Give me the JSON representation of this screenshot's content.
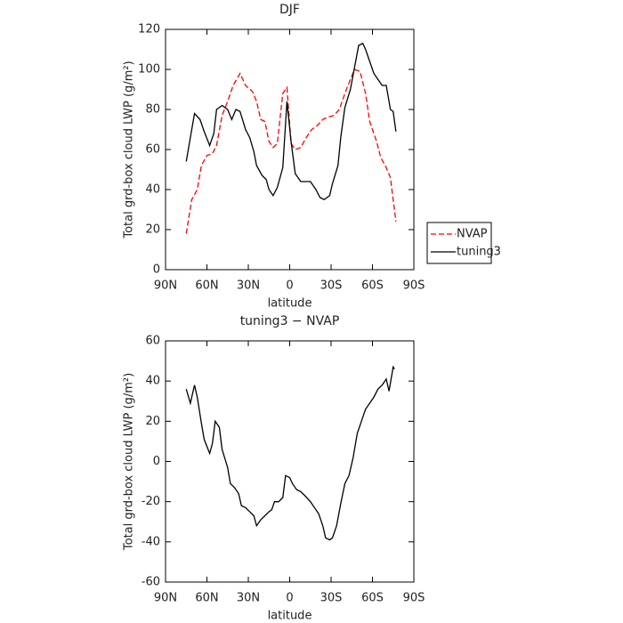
{
  "chart_data": [
    {
      "type": "line",
      "title": "DJF",
      "xlabel": "latitude",
      "ylabel": "Total grd-box cloud LWP (g/m²)",
      "xlim": [
        90,
        -90
      ],
      "xticks": [
        {
          "value": 90,
          "label": "90N"
        },
        {
          "value": 60,
          "label": "60N"
        },
        {
          "value": 30,
          "label": "30N"
        },
        0,
        {
          "value": -30,
          "label": "30S"
        },
        {
          "value": -60,
          "label": "60S"
        },
        {
          "value": -90,
          "label": "90S"
        }
      ],
      "ylim": [
        0,
        120
      ],
      "yticks": [
        0,
        20,
        40,
        60,
        80,
        100,
        120
      ],
      "legend": "right",
      "series": [
        {
          "name": "NVAP",
          "color": "#ff0000",
          "line_style": "dashed",
          "x": [
            75,
            71,
            67,
            64,
            60,
            56,
            53,
            49,
            45,
            41,
            36,
            32,
            27,
            24,
            21,
            18,
            15,
            12,
            9,
            5,
            2,
            -1,
            -4,
            -8,
            -12,
            -16,
            -20,
            -24,
            -27,
            -32,
            -36,
            -40,
            -44,
            -47,
            -51,
            -55,
            -58,
            -63,
            -66,
            -70,
            -73,
            -77
          ],
          "values": [
            18,
            35,
            40,
            52,
            57,
            58,
            62,
            77,
            84,
            92,
            98,
            92,
            89,
            84,
            75,
            74,
            64,
            61,
            63,
            88,
            91,
            63,
            60,
            61,
            66,
            70,
            72,
            75,
            76,
            77,
            80,
            88,
            95,
            100,
            99,
            88,
            74,
            64,
            56,
            51,
            46,
            24
          ]
        },
        {
          "name": "tuning3",
          "color": "#000000",
          "line_style": "solid",
          "x": [
            75,
            69,
            65,
            62,
            58,
            55,
            53,
            49,
            45,
            42,
            39,
            36,
            32,
            29,
            26,
            24,
            20,
            17,
            15,
            12,
            9,
            5,
            2,
            -1,
            -4,
            -8,
            -11,
            -15,
            -19,
            -22,
            -25,
            -29,
            -31,
            -35,
            -37,
            -40,
            -44,
            -47,
            -50,
            -53,
            -55,
            -58,
            -61,
            -64,
            -67,
            -70,
            -73,
            -75,
            -77
          ],
          "values": [
            54,
            78,
            75,
            69,
            62,
            68,
            80,
            82,
            80,
            75,
            80,
            79,
            70,
            66,
            59,
            52,
            47,
            45,
            40,
            37,
            41,
            51,
            84,
            64,
            48,
            44,
            44,
            44,
            40,
            36,
            35,
            37,
            43,
            52,
            66,
            81,
            90,
            101,
            112,
            113,
            110,
            104,
            98,
            95,
            92,
            92,
            80,
            79,
            69
          ]
        }
      ]
    },
    {
      "type": "line",
      "title": "tuning3 − NVAP",
      "xlabel": "latitude",
      "ylabel": "Total grd-box cloud LWP (g/m²)",
      "xlim": [
        90,
        -90
      ],
      "xticks": [
        {
          "value": 90,
          "label": "90N"
        },
        {
          "value": 60,
          "label": "60N"
        },
        {
          "value": 30,
          "label": "30N"
        },
        0,
        {
          "value": -30,
          "label": "30S"
        },
        {
          "value": -60,
          "label": "60S"
        },
        {
          "value": -90,
          "label": "90S"
        }
      ],
      "ylim": [
        -60,
        60
      ],
      "yticks": [
        -60,
        -40,
        -20,
        0,
        20,
        40,
        60
      ],
      "color": "#000000",
      "x": [
        75,
        72,
        69,
        67,
        64,
        62,
        58,
        56,
        54,
        51,
        49,
        45,
        43,
        40,
        37,
        35,
        32,
        29,
        26,
        24,
        21,
        18,
        15,
        13,
        11,
        8,
        5,
        3,
        0,
        -2,
        -5,
        -8,
        -11,
        -15,
        -18,
        -21,
        -24,
        -26,
        -29,
        -31,
        -34,
        -37,
        -40,
        -43,
        -46,
        -49,
        -52,
        -55,
        -58,
        -61,
        -64,
        -67,
        -70,
        -72,
        -75,
        -76
      ],
      "values": [
        36,
        29,
        38,
        32,
        19,
        11,
        4,
        9,
        20,
        17,
        6,
        -3,
        -11,
        -13,
        -16,
        -22,
        -23,
        -25,
        -27,
        -32,
        -29,
        -27,
        -25,
        -24,
        -20,
        -20,
        -18,
        -7,
        -8,
        -11,
        -14,
        -15,
        -17,
        -20,
        -23,
        -26,
        -32,
        -38,
        -39,
        -38,
        -32,
        -21,
        -11,
        -7,
        2,
        14,
        20,
        26,
        29,
        32,
        36,
        38,
        41,
        35,
        47,
        46
      ]
    }
  ]
}
